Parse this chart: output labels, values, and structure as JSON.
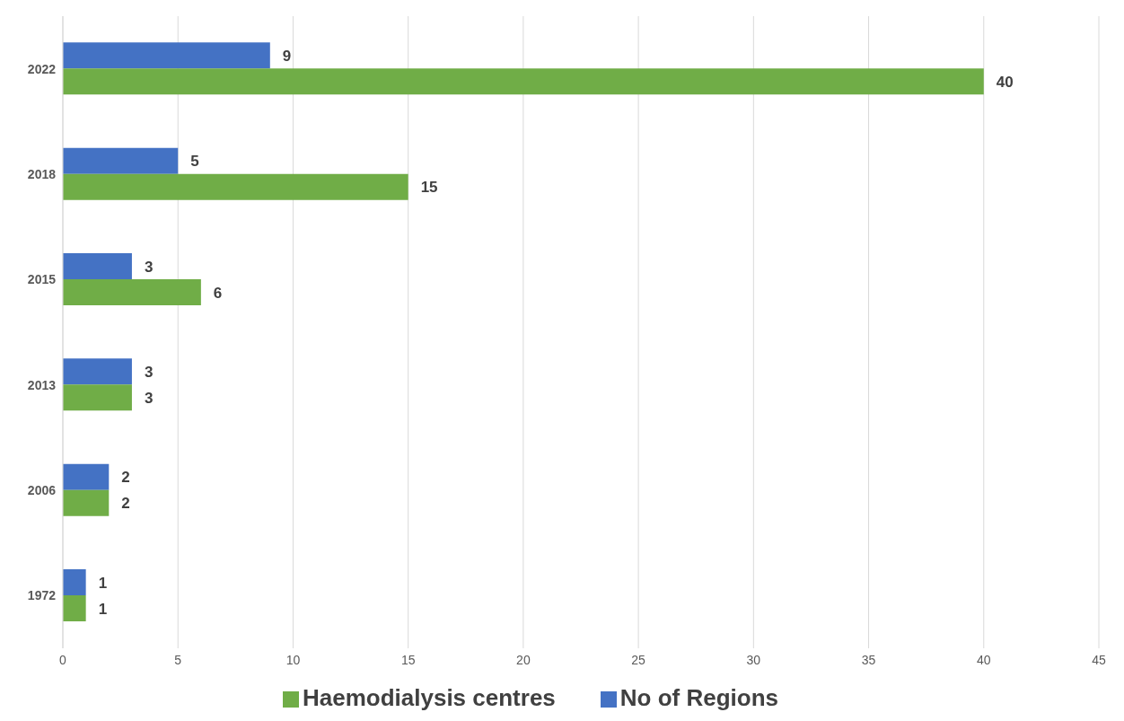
{
  "chart_data": {
    "type": "bar",
    "orientation": "horizontal",
    "categories": [
      "2022",
      "2018",
      "2015",
      "2013",
      "2006",
      "1972"
    ],
    "series": [
      {
        "name": "No of Regions",
        "color": "#4472c4",
        "values": [
          9,
          5,
          3,
          3,
          2,
          1
        ]
      },
      {
        "name": "Haemodialysis centres",
        "color": "#70ad47",
        "values": [
          40,
          15,
          6,
          3,
          2,
          1
        ]
      }
    ],
    "xlim": [
      0,
      45
    ],
    "xticks": [
      0,
      5,
      10,
      15,
      20,
      25,
      30,
      35,
      40,
      45
    ],
    "grid": "x",
    "legend": "bottom",
    "data_labels": true
  }
}
